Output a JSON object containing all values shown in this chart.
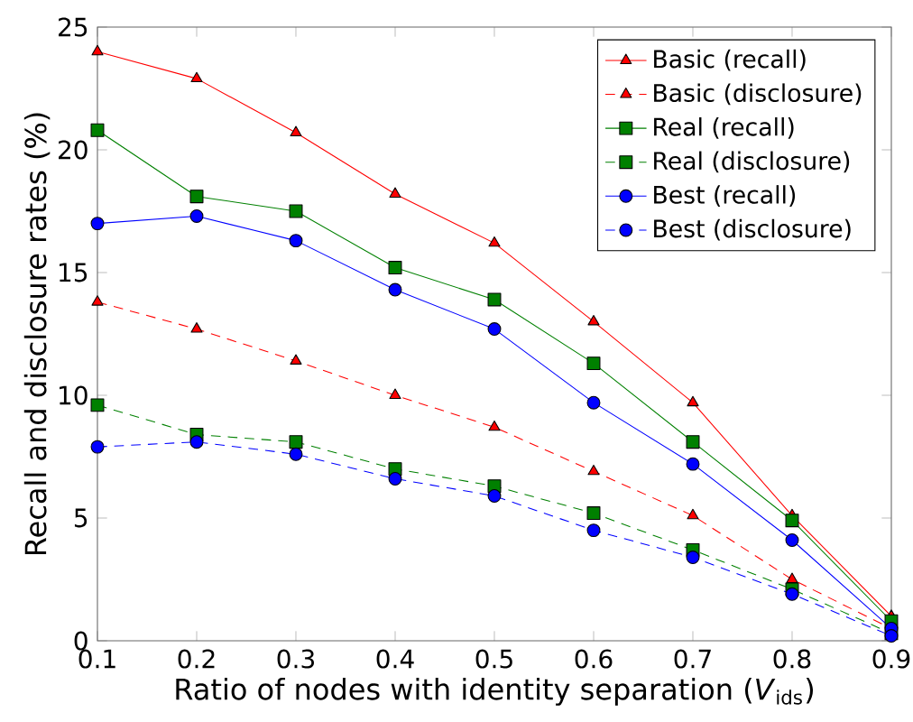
{
  "chart_data": {
    "type": "line",
    "xlabel": "Ratio of nodes with identity separation (*V*$_{ids}$)",
    "ylabel": "Recall and disclosure rates (%)",
    "x": [
      0.1,
      0.2,
      0.3,
      0.4,
      0.5,
      0.6,
      0.7,
      0.8,
      0.9
    ],
    "series": [
      {
        "name": "Basic (recall)",
        "color": "#ff0000",
        "marker": "triangle",
        "line_style": "solid",
        "values": [
          24.0,
          22.9,
          20.7,
          18.2,
          16.2,
          13.0,
          9.7,
          5.1,
          1.0
        ]
      },
      {
        "name": "Basic (disclosure)",
        "color": "#ff0000",
        "marker": "triangle",
        "line_style": "dashed",
        "values": [
          13.8,
          12.7,
          11.4,
          10.0,
          8.7,
          6.9,
          5.1,
          2.5,
          0.5
        ]
      },
      {
        "name": "Real (recall)",
        "color": "#008000",
        "marker": "square",
        "line_style": "solid",
        "values": [
          20.8,
          18.1,
          17.5,
          15.2,
          13.9,
          11.3,
          8.1,
          4.9,
          0.8
        ]
      },
      {
        "name": "Real (disclosure)",
        "color": "#008000",
        "marker": "square",
        "line_style": "dashed",
        "values": [
          9.6,
          8.4,
          8.1,
          7.0,
          6.3,
          5.2,
          3.7,
          2.1,
          0.3
        ]
      },
      {
        "name": "Best (recall)",
        "color": "#0000ff",
        "marker": "circle",
        "line_style": "solid",
        "values": [
          17.0,
          17.3,
          16.3,
          14.3,
          12.7,
          9.7,
          7.2,
          4.1,
          0.5
        ]
      },
      {
        "name": "Best (disclosure)",
        "color": "#0000ff",
        "marker": "circle",
        "line_style": "dashed",
        "values": [
          7.9,
          8.1,
          7.6,
          6.6,
          5.9,
          4.5,
          3.4,
          1.9,
          0.2
        ]
      }
    ],
    "xlim": [
      0.1,
      0.9
    ],
    "xticks": [
      0.1,
      0.2,
      0.3,
      0.4,
      0.5,
      0.6,
      0.7,
      0.8,
      0.9
    ],
    "ylim": [
      0,
      25
    ],
    "yticks": [
      0,
      5,
      10,
      15,
      20,
      25
    ],
    "grid": false,
    "legend": "top right"
  }
}
